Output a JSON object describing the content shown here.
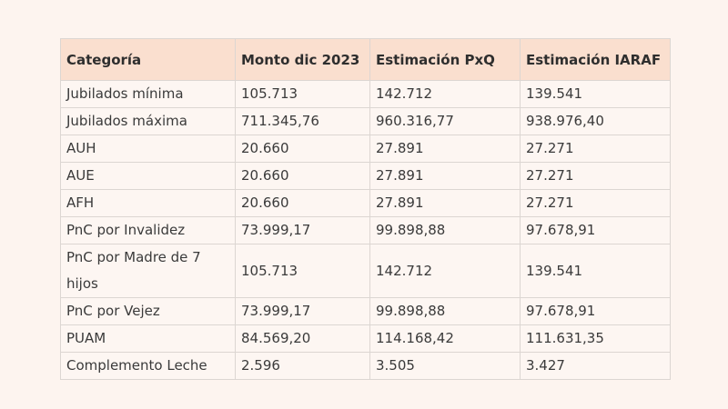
{
  "table": {
    "header": [
      "Categoría",
      "Monto dic 2023",
      "Estimación PxQ",
      "Estimación IARAF"
    ],
    "rows": [
      [
        "Jubilados mínima",
        "105.713",
        "142.712",
        "139.541"
      ],
      [
        "Jubilados máxima",
        "711.345,76",
        "960.316,77",
        "938.976,40"
      ],
      [
        "AUH",
        "20.660",
        "27.891",
        "27.271"
      ],
      [
        "AUE",
        "20.660",
        "27.891",
        "27.271"
      ],
      [
        "AFH",
        "20.660",
        "27.891",
        "27.271"
      ],
      [
        "PnC por Invalidez",
        "73.999,17",
        "99.898,88",
        "97.678,91"
      ],
      [
        "PnC por Madre de 7 hijos",
        "105.713",
        "142.712",
        "139.541"
      ],
      [
        "PnC por Vejez",
        "73.999,17",
        "99.898,88",
        "97.678,91"
      ],
      [
        "PUAM",
        "84.569,20",
        "114.168,42",
        "111.631,35"
      ],
      [
        "Complemento Leche",
        "2.596",
        "3.505",
        "3.427"
      ]
    ]
  }
}
